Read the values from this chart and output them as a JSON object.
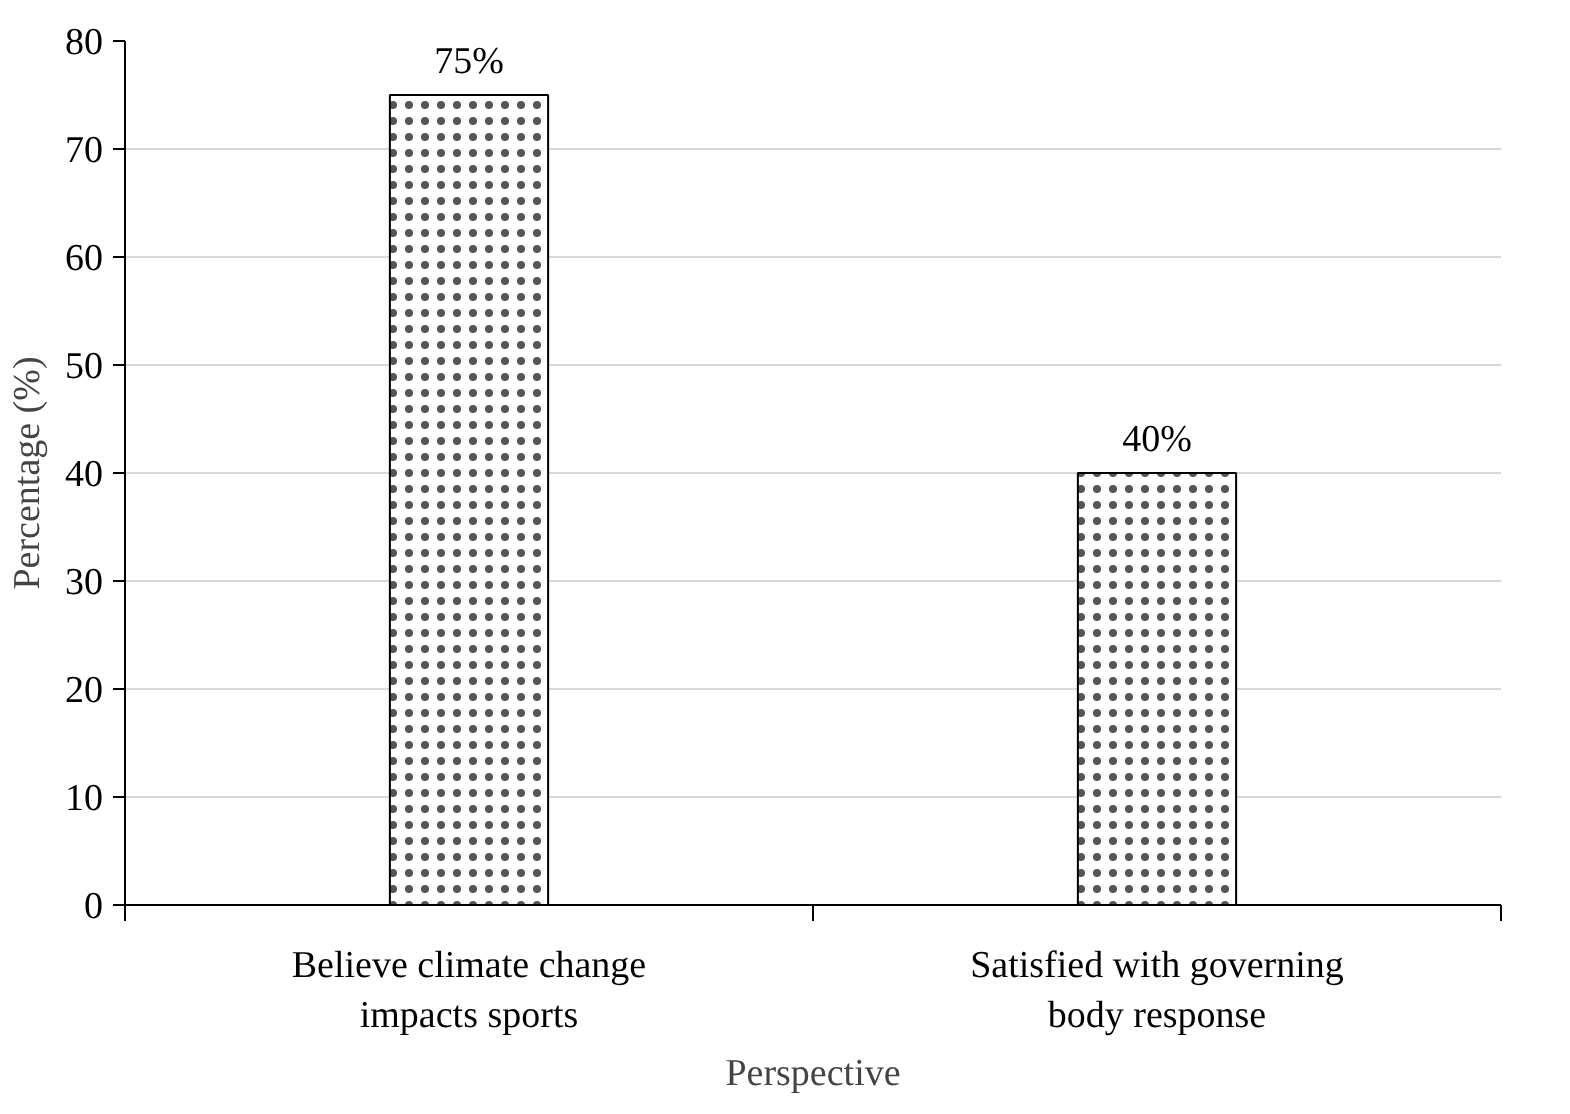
{
  "chart_data": {
    "type": "bar",
    "xlabel": "Perspective",
    "ylabel": "Percentage (%)",
    "categories": [
      "Believe climate change impacts sports",
      "Satisfied with governing body response"
    ],
    "values": [
      75,
      40
    ],
    "value_labels": [
      "75%",
      "40%"
    ],
    "color": "#ffffff",
    "ylim": [
      0,
      80
    ],
    "yticks": [
      0,
      10,
      20,
      30,
      40,
      50,
      60,
      70,
      80
    ],
    "grid": "y"
  }
}
